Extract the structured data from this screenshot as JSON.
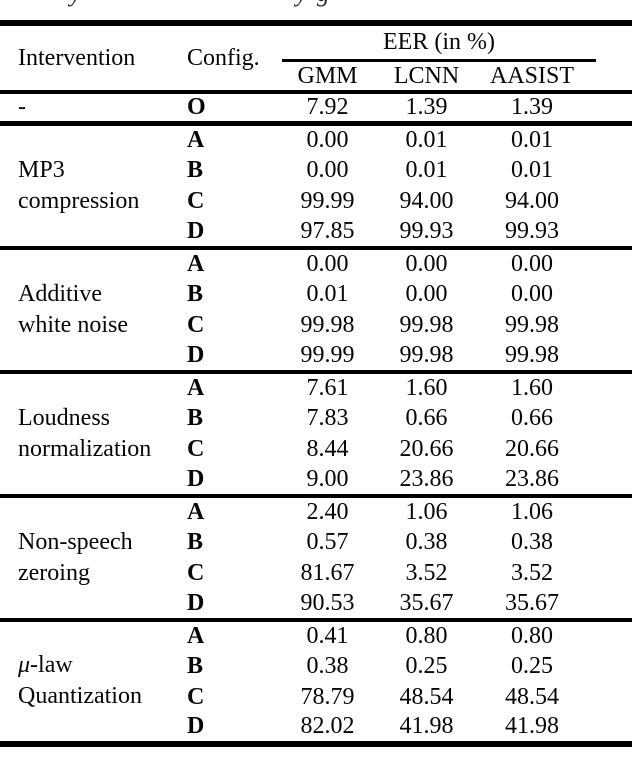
{
  "caption_fragment": {
    "char1": "y",
    "char2": "y",
    "char3": "g"
  },
  "table": {
    "headers": {
      "intervention": "Intervention",
      "config": "Config.",
      "eer_group": "EER (in %)",
      "models": [
        "GMM",
        "LCNN",
        "AASIST"
      ]
    },
    "baseline": {
      "intervention": "-",
      "config": "O",
      "values": [
        "7.92",
        "1.39",
        "1.39"
      ]
    },
    "sections": [
      {
        "line1_italic": "",
        "line1": "MP3",
        "line2": "compression",
        "rows": [
          {
            "config": "A",
            "values": [
              "0.00",
              "0.01",
              "0.01"
            ]
          },
          {
            "config": "B",
            "values": [
              "0.00",
              "0.01",
              "0.01"
            ]
          },
          {
            "config": "C",
            "values": [
              "99.99",
              "94.00",
              "94.00"
            ]
          },
          {
            "config": "D",
            "values": [
              "97.85",
              "99.93",
              "99.93"
            ]
          }
        ]
      },
      {
        "line1_italic": "",
        "line1": "Additive",
        "line2": "white noise",
        "rows": [
          {
            "config": "A",
            "values": [
              "0.00",
              "0.00",
              "0.00"
            ]
          },
          {
            "config": "B",
            "values": [
              "0.01",
              "0.00",
              "0.00"
            ]
          },
          {
            "config": "C",
            "values": [
              "99.98",
              "99.98",
              "99.98"
            ]
          },
          {
            "config": "D",
            "values": [
              "99.99",
              "99.98",
              "99.98"
            ]
          }
        ]
      },
      {
        "line1_italic": "",
        "line1": "Loudness",
        "line2": "normalization",
        "rows": [
          {
            "config": "A",
            "values": [
              "7.61",
              "1.60",
              "1.60"
            ]
          },
          {
            "config": "B",
            "values": [
              "7.83",
              "0.66",
              "0.66"
            ]
          },
          {
            "config": "C",
            "values": [
              "8.44",
              "20.66",
              "20.66"
            ]
          },
          {
            "config": "D",
            "values": [
              "9.00",
              "23.86",
              "23.86"
            ]
          }
        ]
      },
      {
        "line1_italic": "",
        "line1": "Non-speech",
        "line2": "zeroing",
        "rows": [
          {
            "config": "A",
            "values": [
              "2.40",
              "1.06",
              "1.06"
            ]
          },
          {
            "config": "B",
            "values": [
              "0.57",
              "0.38",
              "0.38"
            ]
          },
          {
            "config": "C",
            "values": [
              "81.67",
              "3.52",
              "3.52"
            ]
          },
          {
            "config": "D",
            "values": [
              "90.53",
              "35.67",
              "35.67"
            ]
          }
        ]
      },
      {
        "line1_italic": "μ",
        "line1": "-law",
        "line2": "Quantization",
        "rows": [
          {
            "config": "A",
            "values": [
              "0.41",
              "0.80",
              "0.80"
            ]
          },
          {
            "config": "B",
            "values": [
              "0.38",
              "0.25",
              "0.25"
            ]
          },
          {
            "config": "C",
            "values": [
              "78.79",
              "48.54",
              "48.54"
            ]
          },
          {
            "config": "D",
            "values": [
              "82.02",
              "41.98",
              "41.98"
            ]
          }
        ]
      }
    ]
  }
}
